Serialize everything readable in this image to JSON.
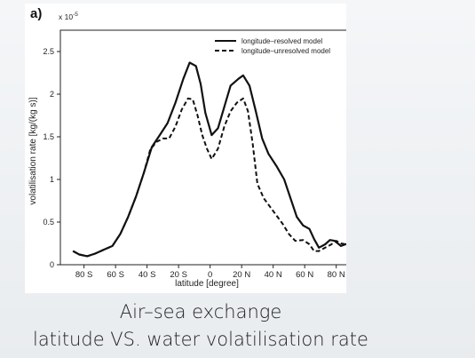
{
  "panel_label": "a)",
  "caption": {
    "line1": "Air–sea exchange",
    "line2": "latitude VS. water volatilisation rate"
  },
  "chart_data": {
    "type": "line",
    "xlabel": "latitude [degree]",
    "ylabel": "volatilisation rate [kg/(kg s)]",
    "y_multiplier_label": "x 10",
    "y_multiplier_exponent": "-5",
    "xlim": [
      -95,
      92
    ],
    "ylim": [
      0,
      2.75
    ],
    "x_ticks": [
      -80,
      -60,
      -40,
      -20,
      0,
      20,
      40,
      60,
      80
    ],
    "x_tick_labels": [
      "80 S",
      "60 S",
      "40 S",
      "20 S",
      "0",
      "20 N",
      "40 N",
      "60 N",
      "80 N"
    ],
    "y_ticks": [
      0,
      0.5,
      1,
      1.5,
      2,
      2.5
    ],
    "y_tick_labels": [
      "0",
      "0.5",
      "1",
      "1.5",
      "2",
      "2.5"
    ],
    "grid": false,
    "legend_position": "top-right",
    "series": [
      {
        "name": "longitude–resolved model",
        "style": "solid",
        "color": "#111111",
        "points": [
          [
            -87,
            0.16
          ],
          [
            -83,
            0.12
          ],
          [
            -78,
            0.1
          ],
          [
            -73,
            0.13
          ],
          [
            -67,
            0.18
          ],
          [
            -62,
            0.22
          ],
          [
            -57,
            0.36
          ],
          [
            -52,
            0.56
          ],
          [
            -47,
            0.8
          ],
          [
            -42,
            1.08
          ],
          [
            -37,
            1.38
          ],
          [
            -32,
            1.52
          ],
          [
            -27,
            1.66
          ],
          [
            -22,
            1.9
          ],
          [
            -17,
            2.18
          ],
          [
            -13,
            2.37
          ],
          [
            -9,
            2.33
          ],
          [
            -6,
            2.12
          ],
          [
            -3,
            1.78
          ],
          [
            1,
            1.52
          ],
          [
            5,
            1.6
          ],
          [
            9,
            1.85
          ],
          [
            13,
            2.1
          ],
          [
            18,
            2.18
          ],
          [
            21,
            2.22
          ],
          [
            25,
            2.1
          ],
          [
            29,
            1.8
          ],
          [
            33,
            1.48
          ],
          [
            37,
            1.3
          ],
          [
            42,
            1.16
          ],
          [
            47,
            1.0
          ],
          [
            51,
            0.78
          ],
          [
            55,
            0.56
          ],
          [
            59,
            0.46
          ],
          [
            63,
            0.42
          ],
          [
            66,
            0.3
          ],
          [
            69,
            0.2
          ],
          [
            73,
            0.24
          ],
          [
            76,
            0.29
          ],
          [
            79,
            0.28
          ],
          [
            83,
            0.22
          ],
          [
            86,
            0.24
          ],
          [
            89,
            0.25
          ]
        ]
      },
      {
        "name": "longitude–unresolved model",
        "style": "dashed",
        "color": "#111111",
        "points": [
          [
            -87,
            0.16
          ],
          [
            -83,
            0.12
          ],
          [
            -78,
            0.1
          ],
          [
            -73,
            0.13
          ],
          [
            -67,
            0.18
          ],
          [
            -62,
            0.22
          ],
          [
            -57,
            0.36
          ],
          [
            -52,
            0.56
          ],
          [
            -47,
            0.8
          ],
          [
            -42,
            1.08
          ],
          [
            -38,
            1.35
          ],
          [
            -34,
            1.44
          ],
          [
            -30,
            1.48
          ],
          [
            -26,
            1.48
          ],
          [
            -22,
            1.62
          ],
          [
            -18,
            1.82
          ],
          [
            -14,
            1.95
          ],
          [
            -11,
            1.94
          ],
          [
            -8,
            1.75
          ],
          [
            -5,
            1.52
          ],
          [
            -2,
            1.36
          ],
          [
            1,
            1.24
          ],
          [
            5,
            1.36
          ],
          [
            9,
            1.62
          ],
          [
            13,
            1.8
          ],
          [
            17,
            1.9
          ],
          [
            21,
            1.95
          ],
          [
            24,
            1.8
          ],
          [
            27,
            1.42
          ],
          [
            30,
            0.95
          ],
          [
            34,
            0.78
          ],
          [
            38,
            0.68
          ],
          [
            42,
            0.58
          ],
          [
            46,
            0.48
          ],
          [
            50,
            0.36
          ],
          [
            54,
            0.28
          ],
          [
            59,
            0.29
          ],
          [
            63,
            0.24
          ],
          [
            66,
            0.16
          ],
          [
            69,
            0.16
          ],
          [
            73,
            0.2
          ],
          [
            77,
            0.24
          ],
          [
            80,
            0.28
          ],
          [
            83,
            0.25
          ],
          [
            86,
            0.24
          ],
          [
            89,
            0.25
          ]
        ]
      }
    ]
  }
}
